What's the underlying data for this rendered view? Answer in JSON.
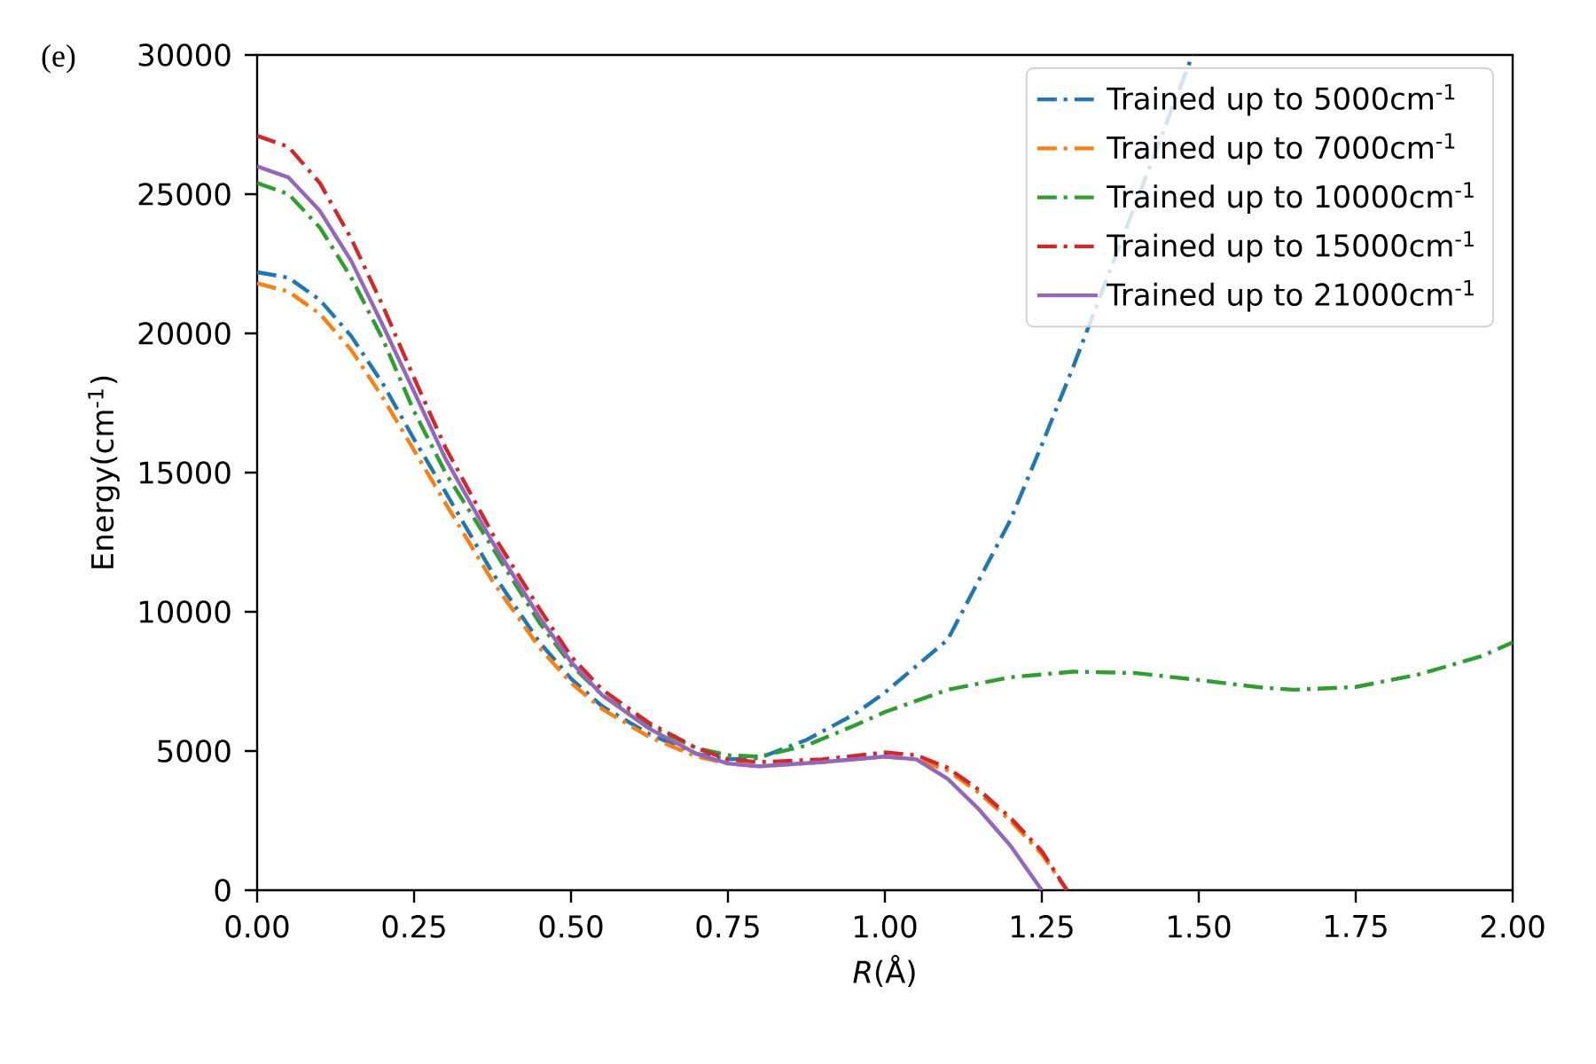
{
  "chart_data": {
    "type": "line",
    "xlabel": "*R*(Å)",
    "ylabel": "Energy(cm$^{-1}$)",
    "annotations": [
      "(e)"
    ],
    "xlim": [
      0,
      2
    ],
    "ylim": [
      0,
      30000
    ],
    "xticks": [
      {
        "value": 0,
        "label": "0.00"
      },
      {
        "value": 0.25,
        "label": "0.25"
      },
      {
        "value": 0.5,
        "label": "0.50"
      },
      {
        "value": 0.75,
        "label": "0.75"
      },
      {
        "value": 1,
        "label": "1.00"
      },
      {
        "value": 1.25,
        "label": "1.25"
      },
      {
        "value": 1.5,
        "label": "1.50"
      },
      {
        "value": 1.75,
        "label": "1.75"
      },
      {
        "value": 2,
        "label": "2.00"
      }
    ],
    "yticks": [
      0,
      5000,
      10000,
      15000,
      20000,
      25000,
      30000
    ],
    "grid": false,
    "legend": "top right",
    "marker": "none",
    "series": [
      {
        "name": "Trained up to 5000cm$^{-1}$",
        "color": "#1f77b4",
        "line_style": "dashdot",
        "x": [
          0,
          0.05,
          0.1,
          0.15,
          0.2,
          0.25,
          0.3,
          0.375,
          0.45,
          0.5,
          0.55,
          0.625,
          0.7,
          0.75,
          0.8,
          0.875,
          0.95,
          1.0,
          1.1,
          1.2,
          1.25,
          1.3,
          1.4,
          1.49
        ],
        "values": [
          22200,
          22000,
          21200,
          19900,
          18200,
          16200,
          14300,
          11400,
          8900,
          7600,
          6600,
          5600,
          4900,
          4700,
          4750,
          5400,
          6300,
          7100,
          9000,
          13300,
          16000,
          18800,
          null,
          30000
        ]
      },
      {
        "name": "Trained up to 7000cm$^{-1}$",
        "color": "#ff7f0e",
        "line_style": "dashdot",
        "x": [
          0,
          0.05,
          0.1,
          0.15,
          0.2,
          0.25,
          0.3,
          0.375,
          0.45,
          0.5,
          0.55,
          0.625,
          0.7,
          0.75,
          0.8,
          0.9,
          1.0,
          1.05,
          1.1,
          1.15,
          1.2,
          1.25,
          1.29
        ],
        "values": [
          21800,
          21500,
          20700,
          19400,
          17700,
          15800,
          13900,
          11100,
          8700,
          7450,
          6500,
          5500,
          4800,
          4550,
          4450,
          4600,
          4800,
          4700,
          4300,
          3500,
          2500,
          1300,
          0
        ]
      },
      {
        "name": "Trained up to 10000cm$^{-1}$",
        "color": "#2ca02c",
        "line_style": "dashdot",
        "x": [
          0,
          0.05,
          0.1,
          0.15,
          0.2,
          0.25,
          0.3,
          0.375,
          0.45,
          0.5,
          0.55,
          0.625,
          0.7,
          0.75,
          0.8,
          0.875,
          0.95,
          1.0,
          1.1,
          1.2,
          1.3,
          1.4,
          1.5,
          1.6,
          1.65,
          1.75,
          1.85,
          1.95,
          2.0
        ],
        "values": [
          25400,
          25000,
          23800,
          22000,
          19800,
          17200,
          15000,
          12300,
          9600,
          8100,
          7000,
          5900,
          5100,
          4850,
          4800,
          5200,
          5900,
          6400,
          7200,
          7650,
          7850,
          7800,
          7550,
          7280,
          7200,
          7300,
          7750,
          8400,
          8900
        ]
      },
      {
        "name": "Trained up to 15000cm$^{-1}$",
        "color": "#d62728",
        "line_style": "dashdot",
        "x": [
          0,
          0.05,
          0.1,
          0.15,
          0.2,
          0.25,
          0.3,
          0.375,
          0.45,
          0.5,
          0.55,
          0.625,
          0.7,
          0.75,
          0.8,
          0.9,
          1.0,
          1.05,
          1.1,
          1.15,
          1.2,
          1.25,
          1.29
        ],
        "values": [
          27100,
          26700,
          25400,
          23400,
          21000,
          18400,
          15900,
          12800,
          10100,
          8400,
          7200,
          6000,
          5100,
          4700,
          4600,
          4700,
          4950,
          4850,
          4400,
          3600,
          2600,
          1400,
          0
        ]
      },
      {
        "name": "Trained up to 21000cm$^{-1}$",
        "color": "#9467bd",
        "line_style": "solid",
        "x": [
          0,
          0.05,
          0.1,
          0.15,
          0.2,
          0.25,
          0.3,
          0.375,
          0.45,
          0.5,
          0.55,
          0.625,
          0.7,
          0.75,
          0.8,
          0.9,
          1.0,
          1.05,
          1.1,
          1.15,
          1.2,
          1.25
        ],
        "values": [
          26000,
          25600,
          24400,
          22600,
          20300,
          17900,
          15500,
          12500,
          9800,
          8200,
          7000,
          5800,
          4900,
          4550,
          4450,
          4600,
          4800,
          4700,
          4000,
          2900,
          1600,
          0
        ]
      }
    ]
  }
}
